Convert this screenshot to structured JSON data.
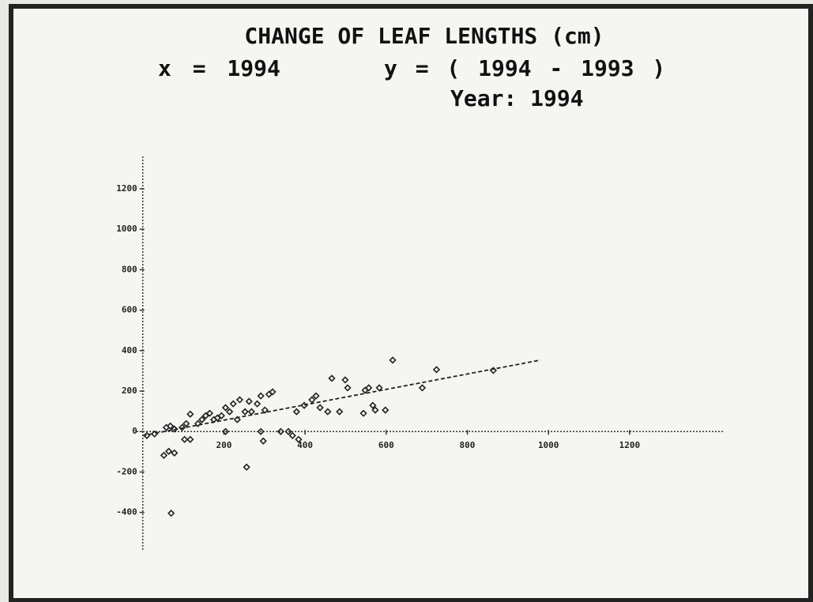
{
  "chart_data": {
    "type": "scatter",
    "title": "CHANGE OF LEAF LENGTHS (cm)",
    "subtitle_x": "x = 1994",
    "subtitle_y": "y = ( 1994 - 1993 )",
    "year_label": "Year: 1994",
    "xlim": [
      -15,
      1430
    ],
    "ylim": [
      -585,
      1360
    ],
    "xticks": [
      200,
      400,
      600,
      800,
      1000,
      1200
    ],
    "yticks": [
      1200,
      1000,
      800,
      600,
      400,
      200,
      0,
      -200,
      -400
    ],
    "color": "#222222",
    "x": [
      10,
      29,
      52,
      64,
      78,
      70,
      58,
      68,
      78,
      97,
      107,
      117,
      103,
      117,
      136,
      146,
      155,
      165,
      175,
      184,
      194,
      204,
      214,
      223,
      233,
      239,
      252,
      262,
      268,
      204,
      256,
      282,
      291,
      301,
      311,
      320,
      291,
      297,
      340,
      359,
      369,
      384,
      379,
      398,
      417,
      427,
      437,
      456,
      466,
      485,
      499,
      505,
      544,
      548,
      557,
      567,
      573,
      583,
      598,
      616,
      689,
      724,
      864
    ],
    "y": [
      -20,
      -12,
      -118,
      -98,
      -106,
      -404,
      20,
      27,
      12,
      20,
      39,
      86,
      -39,
      -39,
      39,
      59,
      78,
      90,
      59,
      67,
      78,
      118,
      98,
      137,
      59,
      157,
      98,
      149,
      98,
      0,
      -176,
      137,
      176,
      106,
      184,
      196,
      0,
      -47,
      0,
      0,
      -20,
      -39,
      98,
      129,
      157,
      176,
      118,
      98,
      263,
      98,
      255,
      216,
      90,
      204,
      216,
      129,
      106,
      216,
      106,
      353,
      216,
      306,
      302
    ],
    "trend_line": {
      "x": [
        0,
        980
      ],
      "y": [
        -20,
        353
      ]
    }
  }
}
